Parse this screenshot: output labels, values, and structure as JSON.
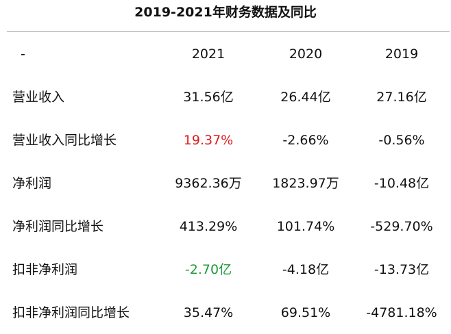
{
  "title": "2019-2021年财务数据及同比",
  "header": {
    "label": "-",
    "years": [
      "2021",
      "2020",
      "2019"
    ]
  },
  "rows": [
    {
      "name": "营业收入",
      "values": [
        "31.56亿",
        "26.44亿",
        "27.16亿"
      ]
    },
    {
      "name": "营业收入同比增长",
      "values": [
        "19.37%",
        "-2.66%",
        "-0.56%"
      ]
    },
    {
      "name": "净利润",
      "values": [
        "9362.36万",
        "1823.97万",
        "-10.48亿"
      ]
    },
    {
      "name": "净利润同比增长",
      "values": [
        "413.29%",
        "101.74%",
        "-529.70%"
      ]
    },
    {
      "name": "扣非净利润",
      "values": [
        "-2.70亿",
        "-4.18亿",
        "-13.73亿"
      ]
    },
    {
      "name": "扣非净利润同比增长",
      "values": [
        "35.47%",
        "69.51%",
        "-4781.18%"
      ]
    }
  ],
  "colors": {
    "highlight_positive": "#e01b1b",
    "highlight_negative": "#1e9a3a"
  }
}
